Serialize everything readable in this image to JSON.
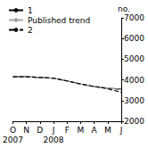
{
  "chart_data": {
    "type": "line",
    "y_label": "no.",
    "categories": [
      "O\n2007",
      "N",
      "D",
      "J\n2008",
      "F",
      "M",
      "A",
      "M",
      "J"
    ],
    "series": [
      {
        "name": "1",
        "color": "#000000",
        "line_style": "solid",
        "values": [
          4150,
          4150,
          4120,
          4080,
          3950,
          3800,
          3680,
          3600,
          3550
        ]
      },
      {
        "name": "Published trend",
        "color": "#a6a6a6",
        "line_style": "solid",
        "values": [
          4150,
          4150,
          4120,
          4080,
          3950,
          3800,
          3680,
          3610,
          3520
        ]
      },
      {
        "name": "2",
        "color": "#000000",
        "line_style": "dashed",
        "values": [
          4150,
          4150,
          4120,
          4080,
          3950,
          3800,
          3680,
          3570,
          3400
        ]
      }
    ],
    "ylim": [
      2000,
      7000
    ],
    "yticks": [
      2000,
      3000,
      4000,
      5000,
      6000,
      7000
    ],
    "grid": false,
    "legend": "top-left"
  }
}
